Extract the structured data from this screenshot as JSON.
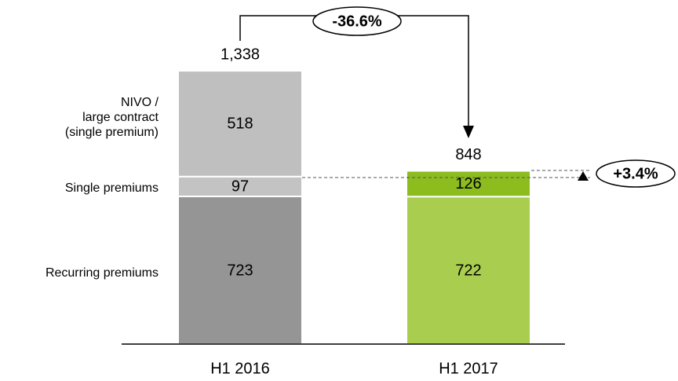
{
  "chart_data": {
    "type": "stacked_bar",
    "categories": [
      "H1 2016",
      "H1 2017"
    ],
    "series": [
      {
        "name": "Recurring premiums",
        "values": [
          723,
          722
        ],
        "color": [
          "#959595",
          "#a9cd4f"
        ]
      },
      {
        "name": "Single premiums",
        "values": [
          97,
          126
        ],
        "color": [
          "#c3c3c3",
          "#8cbc1e"
        ]
      },
      {
        "name": "NIVO /\nlarge contract\n(single premium)",
        "values": [
          518,
          null
        ],
        "color": [
          "#bfbfbf",
          null
        ]
      }
    ],
    "totals": {
      "values": [
        1338,
        848
      ],
      "value_labels": [
        "1,338",
        "848"
      ]
    },
    "annotations": [
      "-36.6%",
      "+3.4%"
    ]
  }
}
